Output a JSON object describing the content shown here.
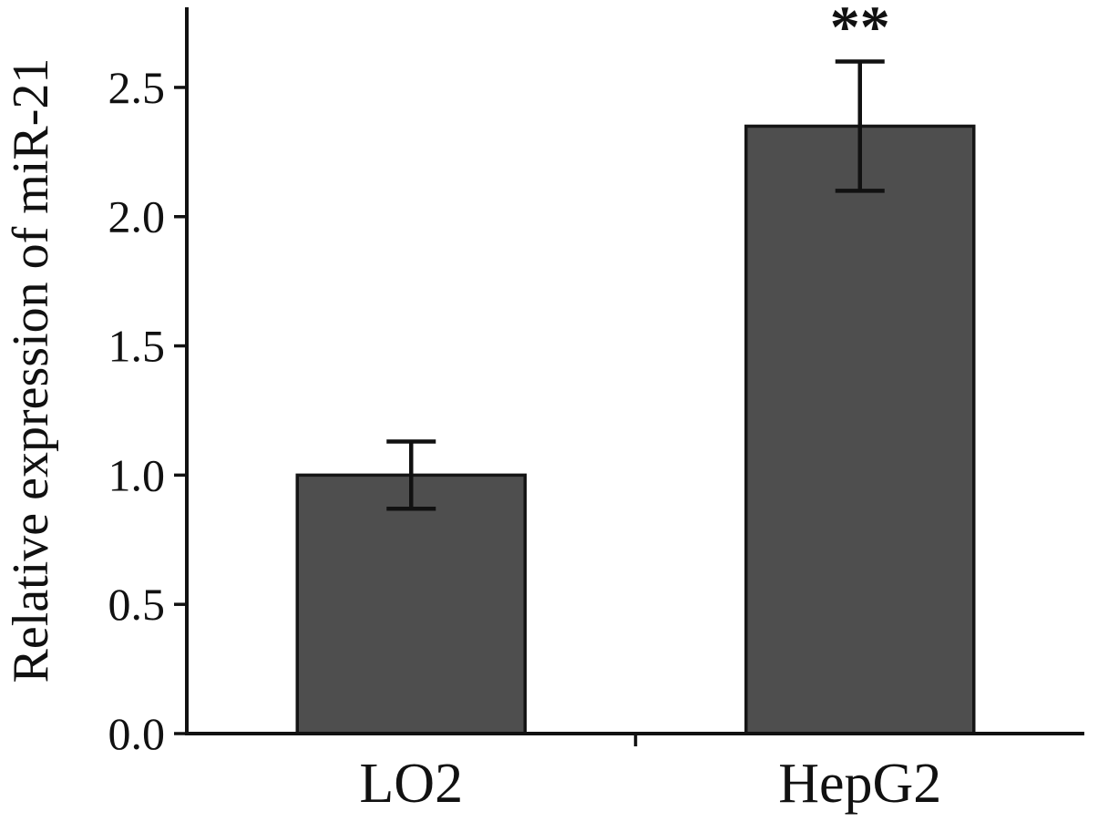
{
  "chart_data": {
    "type": "bar",
    "title": "",
    "xlabel": "",
    "ylabel": "Relative expression of miR-21",
    "categories": [
      "LO2",
      "HepG2"
    ],
    "values": [
      1.0,
      2.35
    ],
    "errors": [
      0.13,
      0.25
    ],
    "annotations": [
      {
        "category_index": 1,
        "text": "**"
      }
    ],
    "yticks": [
      0,
      0.5,
      1,
      1.5,
      2,
      2.5
    ],
    "ytick_labels": [
      "0.0",
      "0.5",
      "1.0",
      "1.5",
      "2.0",
      "2.5"
    ],
    "ylim": [
      0,
      2.81
    ],
    "grid": false,
    "legend": null,
    "bar_color": "#4e4e4e",
    "bar_edge_color": "#151515",
    "axis_color": "#111111",
    "error_bar_color": "#111111",
    "background_color": "#ffffff"
  }
}
